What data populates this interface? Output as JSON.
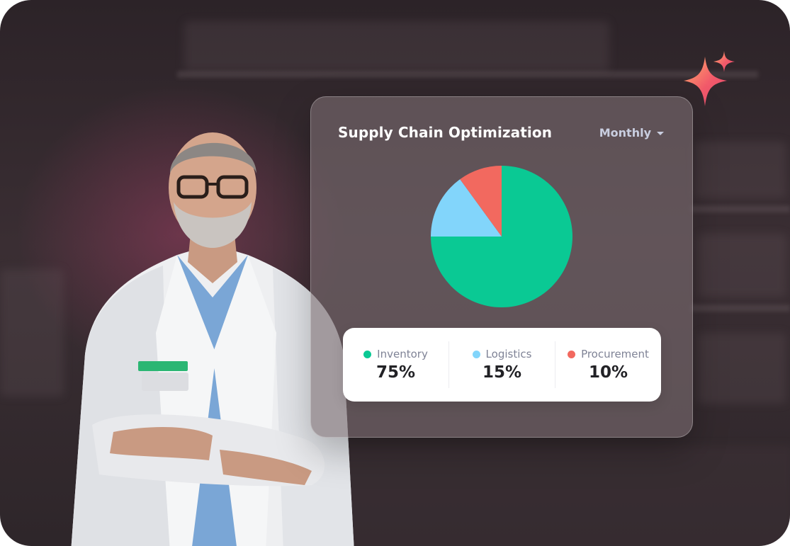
{
  "card": {
    "title": "Supply Chain Optimization",
    "period_label": "Monthly"
  },
  "icons": {
    "period": "chevron-down-icon",
    "decoration": "sparkle-icon"
  },
  "colors": {
    "inventory": "#0ac994",
    "logistics": "#82d5fb",
    "procurement": "#f2695f"
  },
  "chart_data": {
    "type": "pie",
    "categories": [
      "Inventory",
      "Logistics",
      "Procurement"
    ],
    "values": [
      75,
      15,
      10
    ],
    "value_labels": [
      "75%",
      "15%",
      "10%"
    ],
    "colors": [
      "#0ac994",
      "#82d5fb",
      "#f2695f"
    ],
    "legend": "bottom"
  }
}
